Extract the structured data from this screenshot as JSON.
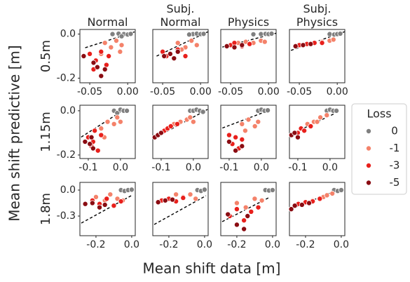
{
  "figure": {
    "xlabel": "Mean shift data [m]",
    "ylabel": "Mean shift predictive [m]"
  },
  "legend": {
    "title": "Loss",
    "loc": "right",
    "entries": [
      {
        "name": "0",
        "color": "#808080"
      },
      {
        "name": "-1",
        "color": "#f4826a"
      },
      {
        "name": "-3",
        "color": "#e8201c"
      },
      {
        "name": "-5",
        "color": "#8a0c12"
      }
    ]
  },
  "chart_data": [
    {
      "type": "scatter",
      "title": "Normal",
      "row_label": "0.5m",
      "xlim": [
        -0.063,
        0.01
      ],
      "ylim": [
        -0.221,
        0.021
      ],
      "xticks": [
        -0.05,
        {
          "value": 0,
          "label": "0.00"
        }
      ],
      "yticks": [
        {
          "value": 0,
          "label": "0.0"
        },
        -0.2
      ],
      "series": [
        {
          "x": [
            -0.02,
            -0.012,
            -0.005,
            0.0,
            0.004,
            -0.008
          ],
          "y": [
            0.0,
            0.002,
            0.0,
            -0.002,
            0.001,
            -0.01
          ]
        },
        {
          "x": [
            -0.03,
            -0.022,
            -0.015,
            -0.008,
            -0.035,
            -0.01
          ],
          "y": [
            -0.04,
            -0.06,
            -0.03,
            -0.05,
            -0.09,
            -0.08
          ]
        },
        {
          "x": [
            -0.05,
            -0.042,
            -0.035,
            -0.028,
            -0.045,
            -0.025
          ],
          "y": [
            -0.09,
            -0.12,
            -0.08,
            -0.14,
            -0.16,
            -0.1
          ]
        },
        {
          "x": [
            -0.058,
            -0.04,
            -0.035,
            -0.03,
            -0.045
          ],
          "y": [
            -0.1,
            -0.15,
            -0.19,
            -0.16,
            -0.13
          ]
        }
      ],
      "fit": {
        "x": [
          -0.056,
          0.01
        ],
        "y": [
          -0.062,
          0.011
        ]
      }
    },
    {
      "type": "scatter",
      "title": "Subj.\nNormal",
      "xlim": [
        -0.063,
        0.01
      ],
      "ylim": [
        -0.221,
        0.021
      ],
      "xticks": [
        -0.05,
        {
          "value": 0,
          "label": "0.00"
        }
      ],
      "series": [
        {
          "x": [
            -0.01,
            -0.005,
            0.0,
            0.004,
            -0.015
          ],
          "y": [
            0.0,
            0.002,
            0.0,
            0.001,
            -0.002
          ]
        },
        {
          "x": [
            -0.03,
            -0.02,
            -0.012,
            -0.005,
            -0.025
          ],
          "y": [
            -0.04,
            -0.06,
            -0.03,
            -0.05,
            -0.07
          ]
        },
        {
          "x": [
            -0.05,
            -0.04,
            -0.03,
            -0.02,
            -0.045
          ],
          "y": [
            -0.08,
            -0.09,
            -0.07,
            -0.1,
            -0.1
          ]
        },
        {
          "x": [
            -0.048,
            -0.04,
            -0.035,
            -0.03
          ],
          "y": [
            -0.1,
            -0.09,
            -0.11,
            -0.08
          ]
        }
      ],
      "fit": {
        "x": [
          -0.058,
          0.01
        ],
        "y": [
          -0.1,
          0.011
        ]
      }
    },
    {
      "type": "scatter",
      "title": "Physics",
      "xlim": [
        -0.063,
        0.01
      ],
      "ylim": [
        -0.221,
        0.021
      ],
      "xticks": [
        -0.05,
        {
          "value": 0,
          "label": "0.00"
        }
      ],
      "series": [
        {
          "x": [
            -0.01,
            -0.004,
            0.0,
            0.004,
            -0.02
          ],
          "y": [
            0.0,
            0.001,
            0.0,
            0.002,
            -0.001
          ]
        },
        {
          "x": [
            -0.04,
            -0.03,
            -0.02,
            -0.01,
            -0.005
          ],
          "y": [
            -0.04,
            -0.035,
            -0.04,
            -0.03,
            -0.035
          ]
        },
        {
          "x": [
            -0.05,
            -0.045,
            -0.035,
            -0.025
          ],
          "y": [
            -0.05,
            -0.04,
            -0.055,
            -0.045
          ]
        },
        {
          "x": [
            -0.055,
            -0.045,
            -0.035
          ],
          "y": [
            -0.055,
            -0.06,
            -0.05
          ]
        }
      ],
      "fit": {
        "x": [
          -0.061,
          0.01
        ],
        "y": [
          -0.059,
          0.004
        ]
      }
    },
    {
      "type": "scatter",
      "title": "Subj.\nPhysics",
      "xlim": [
        -0.063,
        0.01
      ],
      "ylim": [
        -0.221,
        0.021
      ],
      "xticks": [
        -0.05,
        {
          "value": 0,
          "label": "0.00"
        }
      ],
      "series": [
        {
          "x": [
            -0.01,
            -0.004,
            0.0,
            0.004
          ],
          "y": [
            0.0,
            -0.002,
            0.0,
            0.002
          ]
        },
        {
          "x": [
            -0.04,
            -0.03,
            -0.02,
            -0.01,
            -0.005
          ],
          "y": [
            -0.045,
            -0.04,
            -0.035,
            -0.03,
            -0.025
          ]
        },
        {
          "x": [
            -0.05,
            -0.04,
            -0.03,
            -0.02
          ],
          "y": [
            -0.05,
            -0.045,
            -0.04,
            -0.04
          ]
        },
        {
          "x": [
            -0.055,
            -0.045,
            -0.035
          ],
          "y": [
            -0.055,
            -0.05,
            -0.045
          ]
        }
      ],
      "fit": {
        "x": [
          -0.061,
          0.01
        ],
        "y": [
          -0.074,
          0.011
        ]
      }
    },
    {
      "type": "scatter",
      "row_label": "1.15m",
      "xlim": [
        -0.126,
        0.046
      ],
      "ylim": [
        -0.216,
        0.025
      ],
      "xticks": [
        -0.1,
        {
          "value": 0,
          "label": "0.0"
        }
      ],
      "yticks": [
        {
          "value": 0,
          "label": "0.0"
        },
        -0.2
      ],
      "series": [
        {
          "x": [
            -0.02,
            -0.01,
            0.0,
            0.01,
            0.02
          ],
          "y": [
            0.0,
            -0.01,
            0.005,
            0.0,
            0.0
          ]
        },
        {
          "x": [
            -0.06,
            -0.05,
            -0.04,
            -0.02,
            -0.01,
            0.0
          ],
          "y": [
            -0.08,
            -0.12,
            -0.05,
            -0.06,
            -0.03,
            -0.05
          ]
        },
        {
          "x": [
            -0.1,
            -0.09,
            -0.08,
            -0.07,
            -0.06,
            -0.085
          ],
          "y": [
            -0.12,
            -0.16,
            -0.09,
            -0.18,
            -0.11,
            -0.14
          ]
        },
        {
          "x": [
            -0.11,
            -0.095,
            -0.09,
            -0.085
          ],
          "y": [
            -0.14,
            -0.15,
            -0.12,
            -0.17
          ]
        }
      ],
      "fit": {
        "x": [
          -0.122,
          0.0
        ],
        "y": [
          -0.119,
          -0.006
        ]
      }
    },
    {
      "type": "scatter",
      "xlim": [
        -0.126,
        0.046
      ],
      "ylim": [
        -0.216,
        0.025
      ],
      "xticks": [
        -0.1,
        {
          "value": 0,
          "label": "0.0"
        }
      ],
      "series": [
        {
          "x": [
            -0.01,
            0.0,
            0.01,
            0.02,
            0.03
          ],
          "y": [
            0.0,
            0.0,
            0.005,
            0.0,
            -0.005
          ]
        },
        {
          "x": [
            -0.06,
            -0.04,
            -0.02,
            -0.01,
            0.0
          ],
          "y": [
            -0.06,
            -0.05,
            -0.04,
            -0.03,
            -0.05
          ]
        },
        {
          "x": [
            -0.1,
            -0.09,
            -0.08,
            -0.07,
            -0.05
          ],
          "y": [
            -0.1,
            -0.09,
            -0.08,
            -0.07,
            -0.06
          ]
        },
        {
          "x": [
            -0.12,
            -0.11,
            -0.1
          ],
          "y": [
            -0.12,
            -0.11,
            -0.1
          ]
        }
      ],
      "fit": {
        "x": [
          -0.122,
          0.044
        ],
        "y": [
          -0.125,
          0.006
        ]
      }
    },
    {
      "type": "scatter",
      "xlim": [
        -0.126,
        0.046
      ],
      "ylim": [
        -0.216,
        0.025
      ],
      "xticks": [
        -0.1,
        {
          "value": 0,
          "label": "0.0"
        }
      ],
      "series": [
        {
          "x": [
            -0.01,
            0.0,
            0.01,
            0.02
          ],
          "y": [
            0.0,
            0.005,
            0.0,
            0.002
          ]
        },
        {
          "x": [
            -0.06,
            -0.05,
            -0.04,
            -0.02,
            -0.01
          ],
          "y": [
            -0.06,
            -0.09,
            -0.04,
            -0.07,
            -0.05
          ]
        },
        {
          "x": [
            -0.1,
            -0.09,
            -0.08,
            -0.07,
            -0.06
          ],
          "y": [
            -0.11,
            -0.15,
            -0.12,
            -0.17,
            -0.13
          ]
        },
        {
          "x": [
            -0.1,
            -0.08,
            -0.06
          ],
          "y": [
            -0.14,
            -0.18,
            -0.16
          ]
        }
      ],
      "fit": {
        "x": [
          -0.121,
          0.01
        ],
        "y": [
          -0.078,
          -0.006
        ]
      }
    },
    {
      "type": "scatter",
      "xlim": [
        -0.126,
        0.046
      ],
      "ylim": [
        -0.216,
        0.025
      ],
      "xticks": [
        -0.1,
        {
          "value": 0,
          "label": "0.0"
        }
      ],
      "series": [
        {
          "x": [
            -0.01,
            0.0,
            0.01,
            0.02
          ],
          "y": [
            0.0,
            0.005,
            0.0,
            0.0
          ]
        },
        {
          "x": [
            -0.07,
            -0.05,
            -0.04,
            -0.03,
            -0.01
          ],
          "y": [
            -0.06,
            -0.05,
            -0.05,
            -0.03,
            -0.02
          ]
        },
        {
          "x": [
            -0.1,
            -0.09,
            -0.08,
            -0.06
          ],
          "y": [
            -0.1,
            -0.08,
            -0.09,
            -0.07
          ]
        },
        {
          "x": [
            -0.12,
            -0.11,
            -0.1
          ],
          "y": [
            -0.11,
            -0.1,
            -0.12
          ]
        }
      ],
      "fit": {
        "x": [
          -0.121,
          0.014
        ],
        "y": [
          -0.106,
          -0.013
        ]
      }
    },
    {
      "type": "scatter",
      "row_label": "1.8m",
      "xlim": [
        -0.29,
        0.02
      ],
      "ylim": [
        -0.527,
        0.089
      ],
      "xticks": [
        -0.2,
        {
          "value": 0,
          "label": "0.0"
        }
      ],
      "yticks": [
        {
          "value": 0,
          "label": "0.0"
        },
        -0.3
      ],
      "series": [
        {
          "x": [
            -0.06,
            -0.04,
            -0.02,
            0.0
          ],
          "y": [
            0.0,
            -0.01,
            0.0,
            0.005
          ]
        },
        {
          "x": [
            -0.2,
            -0.15,
            -0.12,
            -0.08,
            -0.05
          ],
          "y": [
            -0.08,
            -0.12,
            -0.05,
            -0.1,
            -0.12
          ]
        },
        {
          "x": [
            -0.22,
            -0.18,
            -0.14,
            -0.1,
            -0.06
          ],
          "y": [
            -0.12,
            -0.16,
            -0.1,
            -0.18,
            -0.13
          ]
        },
        {
          "x": [
            -0.26,
            -0.22,
            -0.18,
            -0.15
          ],
          "y": [
            -0.16,
            -0.15,
            -0.2,
            -0.17
          ]
        }
      ],
      "fit": {
        "x": [
          -0.282,
          0.004
        ],
        "y": [
          -0.381,
          -0.057
        ]
      }
    },
    {
      "type": "scatter",
      "xlim": [
        -0.29,
        0.02
      ],
      "ylim": [
        -0.527,
        0.089
      ],
      "xticks": [
        -0.2,
        {
          "value": 0,
          "label": "0.0"
        }
      ],
      "series": [
        {
          "x": [
            -0.04,
            -0.02,
            0.0
          ],
          "y": [
            0.0,
            -0.01,
            0.005
          ]
        },
        {
          "x": [
            -0.2,
            -0.16,
            -0.12,
            -0.08,
            -0.05
          ],
          "y": [
            -0.1,
            -0.05,
            -0.08,
            -0.05,
            -0.1
          ]
        },
        {
          "x": [
            -0.24,
            -0.2,
            -0.16,
            -0.12
          ],
          "y": [
            -0.12,
            -0.1,
            -0.13,
            -0.09
          ]
        },
        {
          "x": [
            -0.26,
            -0.22,
            -0.18
          ],
          "y": [
            -0.14,
            -0.12,
            -0.11
          ]
        }
      ],
      "fit": {
        "x": [
          -0.282,
          0.008
        ],
        "y": [
          -0.397,
          -0.065
        ]
      }
    },
    {
      "type": "scatter",
      "xlim": [
        -0.29,
        0.02
      ],
      "ylim": [
        -0.527,
        0.089
      ],
      "xticks": [
        -0.2,
        {
          "value": 0,
          "label": "0.0"
        }
      ],
      "series": [
        {
          "x": [
            -0.04,
            -0.02,
            0.0
          ],
          "y": [
            0.0,
            -0.005,
            0.0
          ]
        },
        {
          "x": [
            -0.2,
            -0.15,
            -0.1,
            -0.06
          ],
          "y": [
            -0.15,
            -0.2,
            -0.1,
            -0.12
          ]
        },
        {
          "x": [
            -0.24,
            -0.2,
            -0.16,
            -0.12,
            -0.08
          ],
          "y": [
            -0.3,
            -0.22,
            -0.35,
            -0.25,
            -0.2
          ]
        },
        {
          "x": [
            -0.25,
            -0.2,
            -0.16,
            -0.14
          ],
          "y": [
            -0.28,
            -0.4,
            -0.45,
            -0.3
          ]
        }
      ],
      "fit": {
        "x": [
          -0.282,
          -0.023
        ],
        "y": [
          -0.365,
          -0.09
        ]
      }
    },
    {
      "type": "scatter",
      "xlim": [
        -0.29,
        0.02
      ],
      "ylim": [
        -0.527,
        0.089
      ],
      "xticks": [
        -0.2,
        {
          "value": 0,
          "label": "0.0"
        }
      ],
      "series": [
        {
          "x": [
            -0.04,
            -0.02,
            0.0
          ],
          "y": [
            0.0,
            -0.01,
            0.0
          ]
        },
        {
          "x": [
            -0.16,
            -0.12,
            -0.1,
            -0.08,
            -0.05
          ],
          "y": [
            -0.12,
            -0.1,
            -0.08,
            -0.06,
            -0.04
          ]
        },
        {
          "x": [
            -0.24,
            -0.2,
            -0.16,
            -0.12
          ],
          "y": [
            -0.16,
            -0.14,
            -0.13,
            -0.1
          ]
        },
        {
          "x": [
            -0.28,
            -0.26,
            -0.22,
            -0.18
          ],
          "y": [
            -0.22,
            -0.18,
            -0.17,
            -0.15
          ]
        }
      ],
      "fit": {
        "x": [
          -0.282,
          0.008
        ],
        "y": [
          -0.219,
          0.024
        ]
      }
    }
  ]
}
